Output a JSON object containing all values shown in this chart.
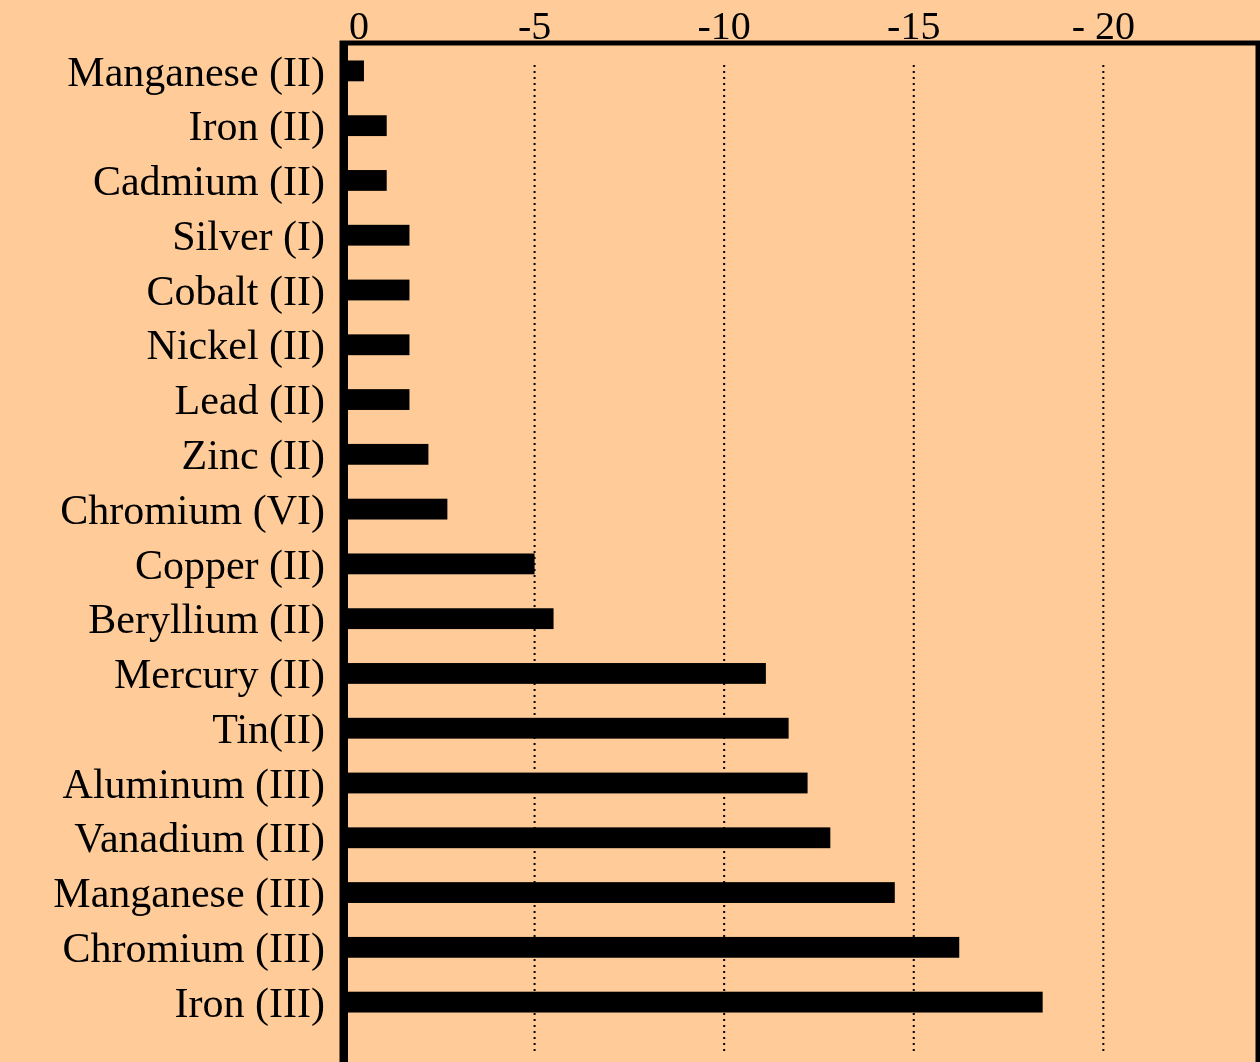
{
  "chart_data": {
    "type": "bar",
    "orientation": "horizontal",
    "categories": [
      "Manganese (II)",
      "Iron (II)",
      "Cadmium (II)",
      "Silver (I)",
      "Cobalt (II)",
      "Nickel (II)",
      "Lead (II)",
      "Zinc (II)",
      "Chromium (VI)",
      "Copper (II)",
      "Beryllium (II)",
      "Mercury (II)",
      "Tin(II)",
      "Aluminum (III)",
      "Vanadium (III)",
      "Manganese (III)",
      "Chromium (III)",
      "Iron (III)"
    ],
    "values": [
      -0.5,
      -1.1,
      -1.1,
      -1.7,
      -1.7,
      -1.7,
      -1.7,
      -2.2,
      -2.7,
      -5.0,
      -5.5,
      -11.1,
      -11.7,
      -12.2,
      -12.8,
      -14.5,
      -16.2,
      -18.4
    ],
    "color": "#000000",
    "xlim": [
      0,
      -24
    ],
    "xticks": [
      0,
      -5,
      -10,
      -15,
      {
        "value": -20,
        "label": "- 20"
      }
    ],
    "grid": "x"
  }
}
